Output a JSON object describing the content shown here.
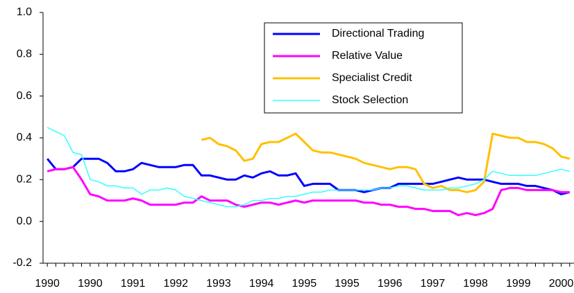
{
  "chart_data": {
    "type": "line",
    "categories": [
      "1990",
      null,
      null,
      null,
      null,
      "1990",
      null,
      null,
      null,
      null,
      "1991",
      null,
      null,
      null,
      null,
      "1992",
      null,
      null,
      null,
      null,
      "1993",
      null,
      null,
      null,
      null,
      "1994",
      null,
      null,
      null,
      null,
      "1995",
      null,
      null,
      null,
      null,
      "1995",
      null,
      null,
      null,
      null,
      "1996",
      null,
      null,
      null,
      null,
      "1997",
      null,
      null,
      null,
      null,
      "1998",
      null,
      null,
      null,
      null,
      "1999",
      null,
      null,
      null,
      null,
      "2000",
      null
    ],
    "ylim": [
      -0.2,
      1.0
    ],
    "yticks": [
      {
        "value": -0.2,
        "label": "-0.2"
      },
      {
        "value": 0,
        "label": "0.0"
      },
      0.2,
      0.4,
      0.6,
      0.8,
      {
        "value": 1,
        "label": "1.0"
      }
    ],
    "grid": false,
    "legend": "top-right",
    "series": [
      {
        "name": "Directional Trading",
        "color": "#0000ff",
        "values": [
          0.3,
          0.25,
          0.25,
          0.26,
          0.3,
          0.3,
          0.3,
          0.28,
          0.24,
          0.24,
          0.25,
          0.28,
          0.27,
          0.26,
          0.26,
          0.26,
          0.27,
          0.27,
          0.22,
          0.22,
          0.21,
          0.2,
          0.2,
          0.22,
          0.21,
          0.23,
          0.24,
          0.22,
          0.22,
          0.23,
          0.17,
          0.18,
          0.18,
          0.18,
          0.15,
          0.15,
          0.15,
          0.14,
          0.15,
          0.16,
          0.16,
          0.18,
          0.18,
          0.18,
          0.18,
          0.18,
          0.19,
          0.2,
          0.21,
          0.2,
          0.2,
          0.2,
          0.19,
          0.18,
          0.18,
          0.18,
          0.17,
          0.17,
          0.16,
          0.15,
          0.13,
          0.14
        ]
      },
      {
        "name": "Relative Value",
        "color": "#ff00ff",
        "values": [
          0.24,
          0.25,
          0.25,
          0.26,
          0.2,
          0.13,
          0.12,
          0.1,
          0.1,
          0.1,
          0.11,
          0.1,
          0.08,
          0.08,
          0.08,
          0.08,
          0.09,
          0.09,
          0.12,
          0.1,
          0.1,
          0.1,
          0.08,
          0.07,
          0.08,
          0.09,
          0.09,
          0.08,
          0.09,
          0.1,
          0.09,
          0.1,
          0.1,
          0.1,
          0.1,
          0.1,
          0.1,
          0.09,
          0.09,
          0.08,
          0.08,
          0.07,
          0.07,
          0.06,
          0.06,
          0.05,
          0.05,
          0.05,
          0.03,
          0.04,
          0.03,
          0.04,
          0.06,
          0.15,
          0.16,
          0.16,
          0.15,
          0.15,
          0.15,
          0.15,
          0.14,
          0.14
        ]
      },
      {
        "name": "Specialist Credit",
        "color": "#ffc000",
        "values": [
          null,
          null,
          null,
          null,
          null,
          null,
          null,
          null,
          null,
          null,
          null,
          null,
          null,
          null,
          null,
          null,
          null,
          null,
          0.39,
          0.4,
          0.37,
          0.36,
          0.34,
          0.29,
          0.3,
          0.37,
          0.38,
          0.38,
          0.4,
          0.42,
          0.38,
          0.34,
          0.33,
          0.33,
          0.32,
          0.31,
          0.3,
          0.28,
          0.27,
          0.26,
          0.25,
          0.26,
          0.26,
          0.25,
          0.18,
          0.16,
          0.17,
          0.15,
          0.15,
          0.14,
          0.15,
          0.19,
          0.42,
          0.41,
          0.4,
          0.4,
          0.38,
          0.38,
          0.37,
          0.35,
          0.31,
          0.3
        ]
      },
      {
        "name": "Stock Selection",
        "color": "#33ffff",
        "values": [
          0.45,
          0.43,
          0.41,
          0.33,
          0.32,
          0.2,
          0.19,
          0.17,
          0.17,
          0.16,
          0.16,
          0.13,
          0.15,
          0.15,
          0.16,
          0.15,
          0.12,
          0.11,
          0.1,
          0.09,
          0.08,
          0.07,
          0.07,
          0.08,
          0.1,
          0.1,
          0.11,
          0.11,
          0.12,
          0.12,
          0.13,
          0.14,
          0.14,
          0.15,
          0.15,
          0.15,
          0.15,
          0.15,
          0.15,
          0.16,
          0.16,
          0.17,
          0.17,
          0.16,
          0.15,
          0.15,
          0.15,
          0.16,
          0.16,
          0.17,
          0.18,
          0.2,
          0.24,
          0.23,
          0.22,
          0.22,
          0.22,
          0.22,
          0.23,
          0.24,
          0.25,
          0.24
        ]
      }
    ]
  }
}
